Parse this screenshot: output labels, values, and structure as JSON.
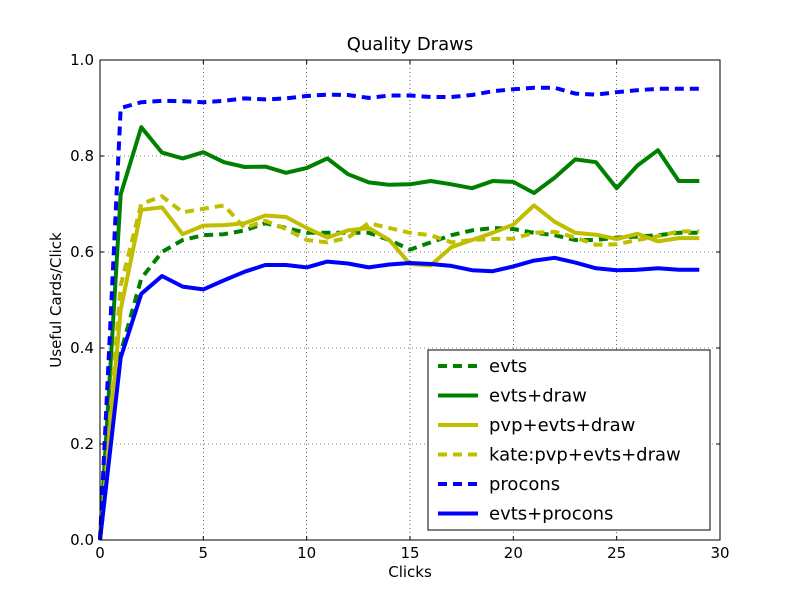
{
  "chart_data": {
    "type": "line",
    "title": "Quality Draws",
    "xlabel": "Clicks",
    "ylabel": "Useful Cards/Click",
    "xlim": [
      0,
      30
    ],
    "ylim": [
      0.0,
      1.0
    ],
    "xticks": [
      "0",
      "5",
      "10",
      "15",
      "20",
      "25",
      "30"
    ],
    "yticks": [
      "0.0",
      "0.2",
      "0.4",
      "0.6",
      "0.8",
      "1.0"
    ],
    "grid": true,
    "legend_position": "lower-right",
    "x": [
      0,
      1,
      2,
      3,
      4,
      5,
      6,
      7,
      8,
      9,
      10,
      11,
      12,
      13,
      14,
      15,
      16,
      17,
      18,
      19,
      20,
      21,
      22,
      23,
      24,
      25,
      26,
      27,
      28,
      29
    ],
    "series": [
      {
        "name": "evts",
        "color": "#008000",
        "style": "dashed",
        "values": [
          0.0,
          0.39,
          0.545,
          0.6,
          0.625,
          0.635,
          0.637,
          0.645,
          0.66,
          0.65,
          0.64,
          0.64,
          0.64,
          0.64,
          0.625,
          0.605,
          0.62,
          0.635,
          0.645,
          0.65,
          0.648,
          0.64,
          0.635,
          0.625,
          0.625,
          0.63,
          0.632,
          0.635,
          0.64,
          0.64
        ]
      },
      {
        "name": "evts+draw",
        "color": "#008000",
        "style": "solid",
        "values": [
          0.0,
          0.72,
          0.86,
          0.807,
          0.795,
          0.808,
          0.787,
          0.777,
          0.778,
          0.765,
          0.775,
          0.795,
          0.762,
          0.745,
          0.74,
          0.741,
          0.748,
          0.741,
          0.733,
          0.748,
          0.746,
          0.723,
          0.755,
          0.793,
          0.787,
          0.733,
          0.78,
          0.812,
          0.748,
          0.748
        ]
      },
      {
        "name": "pvp+evts+draw",
        "color": "#bfbf00",
        "style": "solid",
        "values": [
          0.0,
          0.48,
          0.688,
          0.693,
          0.637,
          0.655,
          0.656,
          0.66,
          0.676,
          0.673,
          0.65,
          0.63,
          0.645,
          0.65,
          0.625,
          0.575,
          0.572,
          0.61,
          0.625,
          0.64,
          0.657,
          0.697,
          0.663,
          0.64,
          0.636,
          0.627,
          0.638,
          0.622,
          0.629,
          0.629
        ]
      },
      {
        "name": "kate:pvp+evts+draw",
        "color": "#bfbf00",
        "style": "dashed",
        "values": [
          0.0,
          0.53,
          0.7,
          0.716,
          0.683,
          0.69,
          0.697,
          0.65,
          0.665,
          0.648,
          0.625,
          0.62,
          0.63,
          0.66,
          0.65,
          0.64,
          0.635,
          0.62,
          0.625,
          0.627,
          0.628,
          0.64,
          0.642,
          0.63,
          0.615,
          0.616,
          0.625,
          0.633,
          0.643,
          0.643
        ]
      },
      {
        "name": "procons",
        "color": "#0000ff",
        "style": "dashed",
        "values": [
          0.0,
          0.9,
          0.912,
          0.915,
          0.914,
          0.912,
          0.915,
          0.92,
          0.918,
          0.92,
          0.925,
          0.928,
          0.927,
          0.921,
          0.926,
          0.926,
          0.923,
          0.923,
          0.927,
          0.935,
          0.939,
          0.942,
          0.942,
          0.93,
          0.928,
          0.933,
          0.937,
          0.94,
          0.94,
          0.94
        ]
      },
      {
        "name": "evts+procons",
        "color": "#0000ff",
        "style": "solid",
        "values": [
          0.0,
          0.38,
          0.513,
          0.55,
          0.528,
          0.522,
          0.541,
          0.559,
          0.573,
          0.573,
          0.568,
          0.58,
          0.576,
          0.568,
          0.574,
          0.577,
          0.575,
          0.571,
          0.562,
          0.56,
          0.57,
          0.582,
          0.588,
          0.578,
          0.566,
          0.562,
          0.563,
          0.566,
          0.563,
          0.563
        ]
      }
    ]
  }
}
